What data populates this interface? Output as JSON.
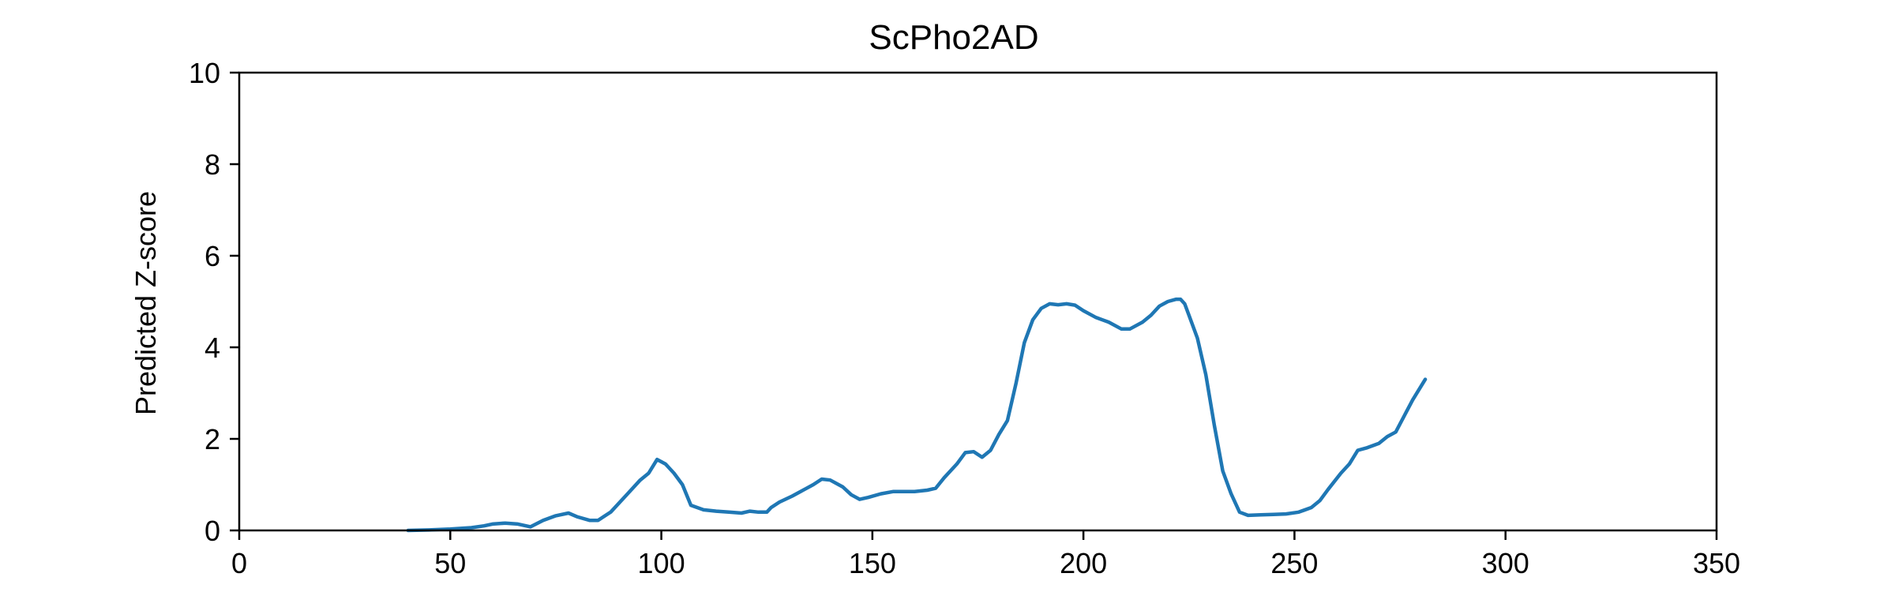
{
  "chart_data": {
    "type": "line",
    "title": "ScPho2AD",
    "xlabel": "",
    "ylabel": "Predicted Z-score",
    "xlim": [
      0,
      350
    ],
    "ylim": [
      0,
      10
    ],
    "xticks": [
      0,
      50,
      100,
      150,
      200,
      250,
      300,
      350
    ],
    "yticks": [
      0,
      2,
      4,
      6,
      8,
      10
    ],
    "grid": false,
    "series": [
      {
        "color": "#1f77b4",
        "x": [
          40,
          45,
          50,
          55,
          58,
          60,
          63,
          66,
          69,
          72,
          75,
          78,
          80,
          83,
          85,
          88,
          92,
          95,
          97,
          99,
          101,
          103,
          105,
          107,
          110,
          113,
          116,
          119,
          121,
          123,
          125,
          126,
          128,
          131,
          134,
          136,
          138,
          140,
          143,
          145,
          147,
          149,
          152,
          155,
          158,
          160,
          163,
          165,
          167,
          170,
          172,
          174,
          176,
          178,
          180,
          182,
          184,
          186,
          188,
          190,
          192,
          194,
          196,
          198,
          200,
          203,
          206,
          209,
          211,
          214,
          216,
          218,
          220,
          222,
          223,
          224,
          225,
          227,
          229,
          231,
          233,
          235,
          237,
          239,
          242,
          245,
          248,
          251,
          254,
          256,
          258,
          261,
          263,
          265,
          267,
          270,
          272,
          274,
          276,
          278,
          281
        ],
        "y": [
          0.0,
          0.01,
          0.03,
          0.06,
          0.1,
          0.14,
          0.16,
          0.14,
          0.08,
          0.22,
          0.32,
          0.38,
          0.3,
          0.22,
          0.22,
          0.4,
          0.8,
          1.1,
          1.25,
          1.55,
          1.45,
          1.25,
          1.0,
          0.55,
          0.45,
          0.42,
          0.4,
          0.38,
          0.42,
          0.4,
          0.4,
          0.5,
          0.62,
          0.75,
          0.9,
          1.0,
          1.12,
          1.1,
          0.95,
          0.78,
          0.68,
          0.72,
          0.8,
          0.85,
          0.85,
          0.85,
          0.88,
          0.92,
          1.15,
          1.45,
          1.7,
          1.72,
          1.6,
          1.75,
          2.1,
          2.4,
          3.2,
          4.1,
          4.6,
          4.85,
          4.95,
          4.93,
          4.95,
          4.92,
          4.8,
          4.65,
          4.55,
          4.4,
          4.4,
          4.55,
          4.7,
          4.9,
          5.0,
          5.05,
          5.05,
          4.95,
          4.7,
          4.2,
          3.4,
          2.3,
          1.3,
          0.8,
          0.4,
          0.33,
          0.34,
          0.35,
          0.36,
          0.4,
          0.5,
          0.65,
          0.9,
          1.25,
          1.45,
          1.75,
          1.8,
          1.9,
          2.05,
          2.15,
          2.5,
          2.85,
          3.3
        ]
      }
    ]
  }
}
